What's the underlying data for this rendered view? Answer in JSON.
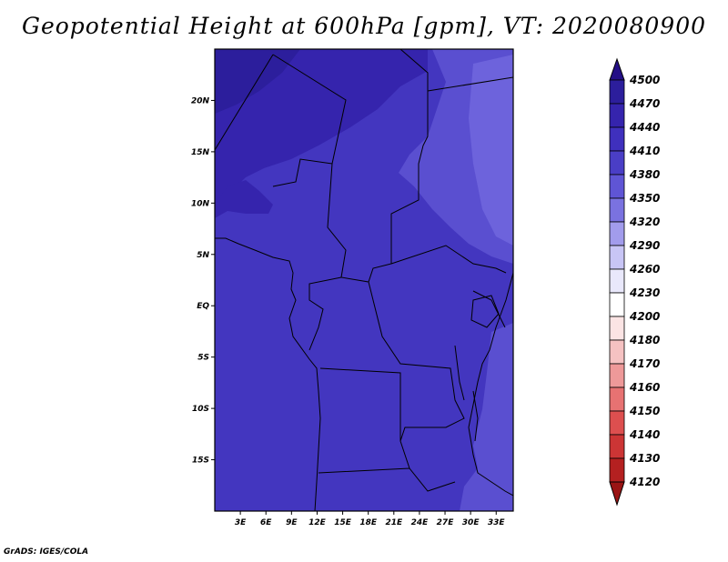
{
  "title": "Geopotential Height at 600hPa [gpm], VT: 2020080900",
  "credit": "GrADS: IGES/COLA",
  "map": {
    "lat_labels": [
      "20N",
      "15N",
      "10N",
      "5N",
      "EQ",
      "5S",
      "10S",
      "15S"
    ],
    "lat_values": [
      20,
      15,
      10,
      5,
      0,
      -5,
      -10,
      -15
    ],
    "lon_labels": [
      "3E",
      "6E",
      "9E",
      "12E",
      "15E",
      "18E",
      "21E",
      "24E",
      "27E",
      "30E",
      "33E"
    ],
    "lon_values": [
      3,
      6,
      9,
      12,
      15,
      18,
      21,
      24,
      27,
      30,
      33
    ],
    "lon_range": [
      0,
      35
    ],
    "lat_range": [
      -20,
      25
    ]
  },
  "colorbar": {
    "labels": [
      "4500",
      "4470",
      "4440",
      "4410",
      "4380",
      "4350",
      "4320",
      "4290",
      "4260",
      "4230",
      "4200",
      "4180",
      "4170",
      "4160",
      "4150",
      "4140",
      "4130",
      "4120"
    ],
    "colors": [
      "#240f86",
      "#2c1e9c",
      "#3524ad",
      "#3f30bd",
      "#4a3ec6",
      "#5f55d5",
      "#7a72e0",
      "#a29cec",
      "#c8c5f5",
      "#e9e8fb",
      "#ffffff",
      "#fbe4e4",
      "#f5c2c2",
      "#ee9999",
      "#e77272",
      "#dd4f4f",
      "#cc3535",
      "#b42020",
      "#9a1414"
    ]
  },
  "field_colors": {
    "c4470": "#2c1e9c",
    "c4440": "#3524ad",
    "c4410": "#4336bf",
    "c4380": "#5a4fd0",
    "c4350": "#6d63dc"
  }
}
